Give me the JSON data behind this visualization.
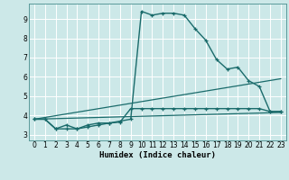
{
  "xlabel": "Humidex (Indice chaleur)",
  "xlim": [
    -0.5,
    23.5
  ],
  "ylim": [
    2.7,
    9.8
  ],
  "xticks": [
    0,
    1,
    2,
    3,
    4,
    5,
    6,
    7,
    8,
    9,
    10,
    11,
    12,
    13,
    14,
    15,
    16,
    17,
    18,
    19,
    20,
    21,
    22,
    23
  ],
  "yticks": [
    3,
    4,
    5,
    6,
    7,
    8,
    9
  ],
  "bg_color": "#cce8e8",
  "grid_color": "#b0d4d4",
  "line_color": "#1a6b6b",
  "series": [
    {
      "x": [
        0,
        1,
        2,
        3,
        4,
        5,
        6,
        7,
        8,
        9,
        10,
        11,
        12,
        13,
        14,
        15,
        16,
        17,
        18,
        19,
        20,
        21,
        22,
        23
      ],
      "y": [
        3.8,
        3.8,
        3.3,
        3.5,
        3.3,
        3.5,
        3.6,
        3.6,
        3.7,
        3.8,
        9.4,
        9.2,
        9.3,
        9.3,
        9.2,
        8.5,
        7.9,
        6.9,
        6.4,
        6.5,
        5.8,
        5.5,
        4.2,
        4.2
      ],
      "marker": "+",
      "linestyle": "-",
      "lw": 1.0
    },
    {
      "x": [
        0,
        1,
        2,
        3,
        4,
        5,
        6,
        7,
        8,
        9,
        10,
        11,
        12,
        13,
        14,
        15,
        16,
        17,
        18,
        19,
        20,
        21,
        22,
        23
      ],
      "y": [
        3.8,
        3.8,
        3.3,
        3.3,
        3.3,
        3.4,
        3.5,
        3.6,
        3.65,
        4.35,
        4.35,
        4.35,
        4.35,
        4.35,
        4.35,
        4.35,
        4.35,
        4.35,
        4.35,
        4.35,
        4.35,
        4.35,
        4.2,
        4.2
      ],
      "marker": "+",
      "linestyle": "-",
      "lw": 1.0
    },
    {
      "x": [
        0,
        23
      ],
      "y": [
        3.8,
        5.9
      ],
      "marker": null,
      "linestyle": "-",
      "lw": 0.9
    },
    {
      "x": [
        0,
        23
      ],
      "y": [
        3.8,
        4.15
      ],
      "marker": null,
      "linestyle": "-",
      "lw": 0.9
    }
  ]
}
